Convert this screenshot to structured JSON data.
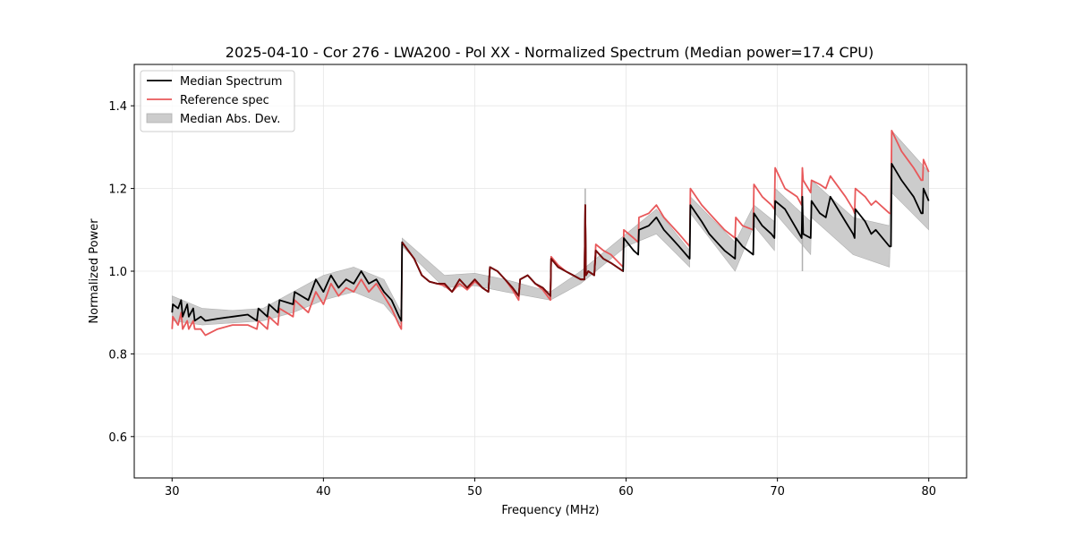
{
  "chart_data": {
    "type": "line",
    "title": "2025-04-10 - Cor 276 - LWA200 - Pol XX - Normalized Spectrum (Median power=17.4 CPU)",
    "xlabel": "Frequency (MHz)",
    "ylabel": "Normalized Power",
    "xlim": [
      27.5,
      82.5
    ],
    "ylim": [
      0.5,
      1.5
    ],
    "xticks": [
      30,
      40,
      50,
      60,
      70,
      80
    ],
    "yticks": [
      0.6,
      0.8,
      1.0,
      1.2,
      1.4
    ],
    "xtick_labels": [
      "30",
      "40",
      "50",
      "60",
      "70",
      "80"
    ],
    "ytick_labels": [
      "0.6",
      "0.8",
      "1.0",
      "1.2",
      "1.4"
    ],
    "grid": true,
    "legend_position": "top-left",
    "legend": [
      {
        "label": "Median Spectrum",
        "kind": "line",
        "color": "#000000"
      },
      {
        "label": "Reference spec",
        "kind": "line",
        "color": "#e8585a"
      },
      {
        "label": "Median Abs. Dev.",
        "kind": "band",
        "color": "#cccccc"
      }
    ],
    "series": [
      {
        "name": "Median Spectrum",
        "color": "#000000",
        "x": [
          30.0,
          30.05,
          30.4,
          30.6,
          30.7,
          31.0,
          31.1,
          31.4,
          31.5,
          31.9,
          32.2,
          33.0,
          34.0,
          35.0,
          35.6,
          35.7,
          36.3,
          36.4,
          37.0,
          37.1,
          38.0,
          38.1,
          39.0,
          39.5,
          40.0,
          40.5,
          41.0,
          41.5,
          42.0,
          42.5,
          43.0,
          43.5,
          44.0,
          44.5,
          45.0,
          45.15,
          45.2,
          46.0,
          46.5,
          47.0,
          47.5,
          48.0,
          48.5,
          49.0,
          49.5,
          50.0,
          50.5,
          50.9,
          51.0,
          51.5,
          52.0,
          52.5,
          52.9,
          53.0,
          53.5,
          54.0,
          54.5,
          55.0,
          55.05,
          55.5,
          56.0,
          56.5,
          57.0,
          57.25,
          57.3,
          57.35,
          57.5,
          57.9,
          58.0,
          58.5,
          59.0,
          59.8,
          59.85,
          60.5,
          60.8,
          60.85,
          61.5,
          62.0,
          62.5,
          63.0,
          63.5,
          64.2,
          64.25,
          65.0,
          65.5,
          66.0,
          66.5,
          67.2,
          67.25,
          67.7,
          68.4,
          68.45,
          69.0,
          69.6,
          69.8,
          69.85,
          70.5,
          71.3,
          71.6,
          71.65,
          71.7,
          72.2,
          72.25,
          72.8,
          73.2,
          73.5,
          74.5,
          75.0,
          75.1,
          75.15,
          75.8,
          76.2,
          76.5,
          77.4,
          77.5,
          77.55,
          78.2,
          79.0,
          79.5,
          79.6,
          79.65,
          80.0
        ],
        "y": [
          0.9,
          0.92,
          0.91,
          0.93,
          0.89,
          0.92,
          0.89,
          0.91,
          0.88,
          0.89,
          0.88,
          0.885,
          0.89,
          0.895,
          0.88,
          0.91,
          0.89,
          0.92,
          0.9,
          0.93,
          0.92,
          0.95,
          0.93,
          0.98,
          0.95,
          0.99,
          0.96,
          0.98,
          0.97,
          1.0,
          0.97,
          0.98,
          0.95,
          0.93,
          0.89,
          0.88,
          1.07,
          1.03,
          0.99,
          0.975,
          0.97,
          0.97,
          0.95,
          0.98,
          0.96,
          0.98,
          0.96,
          0.95,
          1.01,
          1.0,
          0.98,
          0.96,
          0.94,
          0.98,
          0.99,
          0.97,
          0.96,
          0.94,
          1.03,
          1.01,
          1.0,
          0.99,
          0.98,
          0.98,
          1.16,
          0.99,
          1.0,
          0.99,
          1.05,
          1.03,
          1.02,
          1.0,
          1.08,
          1.05,
          1.04,
          1.1,
          1.11,
          1.13,
          1.1,
          1.08,
          1.06,
          1.03,
          1.16,
          1.12,
          1.09,
          1.07,
          1.05,
          1.03,
          1.08,
          1.06,
          1.04,
          1.14,
          1.11,
          1.09,
          1.08,
          1.17,
          1.15,
          1.1,
          1.08,
          1.18,
          1.09,
          1.08,
          1.17,
          1.14,
          1.13,
          1.18,
          1.12,
          1.09,
          1.08,
          1.15,
          1.12,
          1.09,
          1.1,
          1.06,
          1.06,
          1.26,
          1.22,
          1.18,
          1.14,
          1.14,
          1.2,
          1.17
        ]
      },
      {
        "name": "Reference spec",
        "color": "#e8585a",
        "x": [
          30.0,
          30.05,
          30.4,
          30.6,
          30.7,
          31.0,
          31.1,
          31.4,
          31.5,
          31.9,
          32.2,
          33.0,
          34.0,
          35.0,
          35.6,
          35.7,
          36.3,
          36.4,
          37.0,
          37.1,
          38.0,
          38.1,
          39.0,
          39.5,
          40.0,
          40.5,
          41.0,
          41.5,
          42.0,
          42.5,
          43.0,
          43.5,
          44.0,
          44.5,
          45.0,
          45.15,
          45.2,
          46.0,
          46.5,
          47.0,
          47.5,
          48.0,
          48.5,
          49.0,
          49.5,
          50.0,
          50.5,
          50.9,
          51.0,
          51.5,
          52.0,
          52.5,
          52.9,
          53.0,
          53.5,
          54.0,
          54.5,
          55.0,
          55.05,
          55.5,
          56.0,
          56.5,
          57.0,
          57.25,
          57.3,
          57.35,
          57.5,
          57.9,
          58.0,
          58.5,
          59.0,
          59.8,
          59.85,
          60.5,
          60.8,
          60.85,
          61.5,
          62.0,
          62.5,
          63.0,
          63.5,
          64.2,
          64.25,
          65.0,
          65.5,
          66.0,
          66.5,
          67.2,
          67.25,
          67.7,
          68.4,
          68.45,
          69.0,
          69.6,
          69.8,
          69.85,
          70.5,
          71.3,
          71.6,
          71.65,
          71.7,
          72.2,
          72.25,
          72.8,
          73.2,
          73.5,
          74.5,
          75.0,
          75.1,
          75.15,
          75.8,
          76.2,
          76.5,
          77.4,
          77.5,
          77.55,
          78.2,
          79.0,
          79.5,
          79.6,
          79.65,
          80.0
        ],
        "y": [
          0.86,
          0.89,
          0.87,
          0.9,
          0.86,
          0.88,
          0.86,
          0.88,
          0.86,
          0.86,
          0.845,
          0.86,
          0.87,
          0.87,
          0.86,
          0.88,
          0.86,
          0.89,
          0.87,
          0.91,
          0.89,
          0.93,
          0.9,
          0.95,
          0.92,
          0.97,
          0.94,
          0.96,
          0.95,
          0.98,
          0.95,
          0.97,
          0.94,
          0.91,
          0.87,
          0.86,
          1.07,
          1.03,
          0.99,
          0.975,
          0.97,
          0.965,
          0.95,
          0.97,
          0.955,
          0.975,
          0.96,
          0.95,
          1.01,
          1.0,
          0.98,
          0.955,
          0.93,
          0.98,
          0.99,
          0.97,
          0.955,
          0.93,
          1.035,
          1.015,
          1.0,
          0.99,
          0.98,
          0.98,
          1.16,
          0.99,
          1.0,
          0.99,
          1.065,
          1.05,
          1.04,
          1.01,
          1.1,
          1.08,
          1.07,
          1.13,
          1.14,
          1.16,
          1.13,
          1.11,
          1.09,
          1.06,
          1.2,
          1.16,
          1.14,
          1.12,
          1.1,
          1.08,
          1.13,
          1.11,
          1.1,
          1.21,
          1.18,
          1.16,
          1.15,
          1.25,
          1.2,
          1.18,
          1.16,
          1.25,
          1.22,
          1.19,
          1.22,
          1.21,
          1.2,
          1.23,
          1.18,
          1.15,
          1.14,
          1.2,
          1.18,
          1.16,
          1.17,
          1.14,
          1.14,
          1.34,
          1.29,
          1.25,
          1.22,
          1.22,
          1.27,
          1.24
        ]
      }
    ],
    "band": {
      "name": "Median Abs. Dev.",
      "color": "#cccccc",
      "x": [
        30.0,
        32.0,
        34.0,
        36.0,
        38.0,
        40.0,
        42.0,
        44.0,
        45.15,
        45.2,
        48.0,
        50.0,
        52.0,
        55.0,
        57.0,
        60.0,
        62.0,
        64.2,
        64.25,
        67.2,
        68.45,
        69.8,
        69.85,
        72.2,
        72.25,
        75.0,
        77.4,
        77.55,
        80.0
      ],
      "lower": [
        0.88,
        0.87,
        0.875,
        0.88,
        0.9,
        0.93,
        0.95,
        0.92,
        0.87,
        1.06,
        0.96,
        0.965,
        0.95,
        0.93,
        0.97,
        1.06,
        1.09,
        1.01,
        1.14,
        1.0,
        1.11,
        1.05,
        1.14,
        1.04,
        1.13,
        1.04,
        1.01,
        1.19,
        1.1
      ],
      "upper": [
        0.94,
        0.91,
        0.905,
        0.91,
        0.95,
        0.99,
        1.01,
        0.98,
        0.9,
        1.08,
        0.99,
        0.995,
        0.98,
        0.95,
        1.0,
        1.09,
        1.15,
        1.05,
        1.18,
        1.07,
        1.16,
        1.12,
        1.2,
        1.12,
        1.22,
        1.13,
        1.11,
        1.34,
        1.24
      ]
    },
    "annotations": [
      {
        "x": 57.3,
        "y_top": 1.2,
        "note": "narrow spike in band"
      },
      {
        "x": 71.65,
        "y_top": 1.23,
        "note": "narrow spike in band"
      }
    ]
  }
}
